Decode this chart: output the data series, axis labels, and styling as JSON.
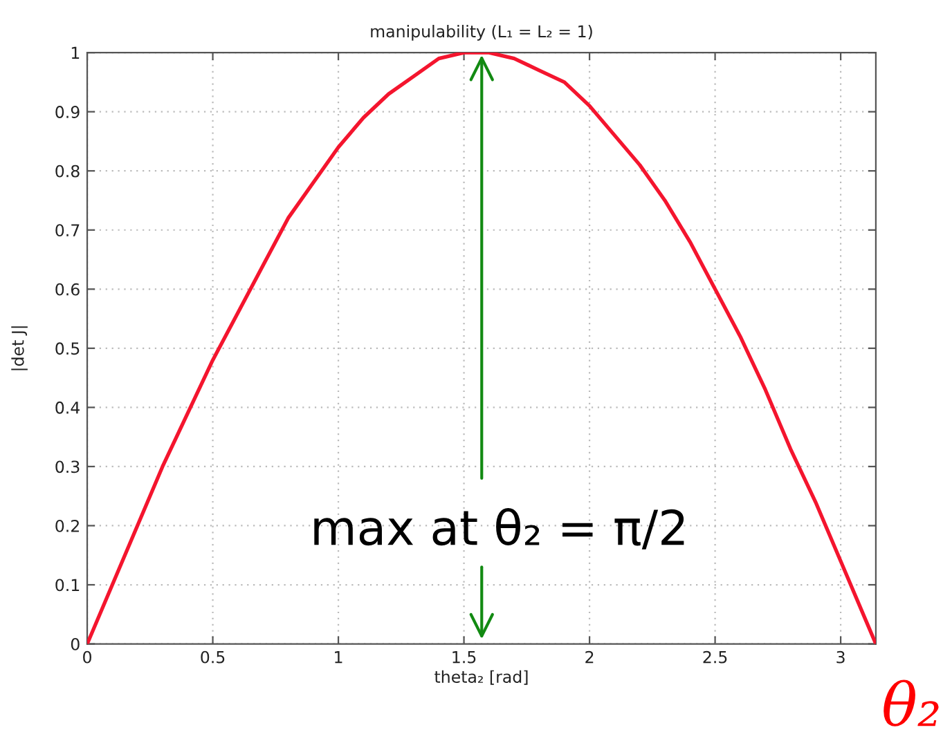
{
  "chart_data": {
    "type": "line",
    "title": "manipulability (L₁ = L₂ = 1)",
    "xlabel": "theta₂ [rad]",
    "ylabel": "|det J|",
    "x": [
      0,
      0.1,
      0.2,
      0.3,
      0.4,
      0.5,
      0.6,
      0.7,
      0.8,
      0.9,
      1.0,
      1.1,
      1.2,
      1.3,
      1.4,
      1.5,
      1.6,
      1.7,
      1.8,
      1.9,
      2.0,
      2.1,
      2.2,
      2.3,
      2.4,
      2.5,
      2.6,
      2.7,
      2.8,
      2.9,
      3.0,
      3.1,
      3.14
    ],
    "series": [
      {
        "color": "#f4152e",
        "values": [
          0,
          0.1,
          0.2,
          0.3,
          0.39,
          0.48,
          0.56,
          0.64,
          0.72,
          0.78,
          0.84,
          0.89,
          0.93,
          0.96,
          0.99,
          1.0,
          1.0,
          0.99,
          0.97,
          0.95,
          0.91,
          0.86,
          0.81,
          0.75,
          0.68,
          0.6,
          0.52,
          0.43,
          0.33,
          0.24,
          0.14,
          0.04,
          0
        ]
      }
    ],
    "xlim": [
      0,
      3.14
    ],
    "xticks": [
      0,
      0.5,
      1,
      1.5,
      2,
      2.5,
      3
    ],
    "ylim": [
      0,
      1
    ],
    "yticks": [
      0,
      0.1,
      0.2,
      0.3,
      0.4,
      0.5,
      0.6,
      0.7,
      0.8,
      0.9,
      1
    ],
    "grid": true,
    "marker": "none",
    "line_style": "solid",
    "annotations": [
      {
        "text": "max at θ₂ = π/2",
        "x": 1.5708,
        "y": 1
      },
      "θ₂"
    ]
  }
}
